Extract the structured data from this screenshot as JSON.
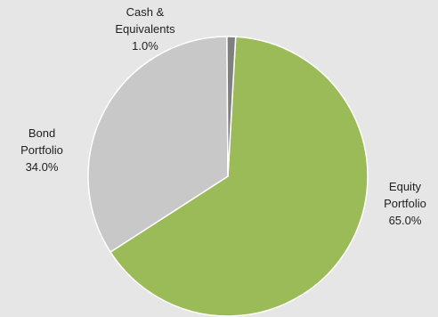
{
  "chart_data": {
    "type": "pie",
    "title": "",
    "slices": [
      {
        "label_lines": [
          "Equity",
          "Portfolio"
        ],
        "value": 65.0,
        "value_label": "65.0%",
        "color": "#9bbb59"
      },
      {
        "label_lines": [
          "Bond",
          "Portfolio"
        ],
        "value": 34.0,
        "value_label": "34.0%",
        "color": "#c8c8c8"
      },
      {
        "label_lines": [
          "Cash &",
          "Equivalents"
        ],
        "value": 1.0,
        "value_label": "1.0%",
        "color": "#808080"
      }
    ],
    "start_angle_deg": 3.2,
    "direction": "clockwise",
    "slice_border_color": "#ffffff",
    "legend": "none"
  }
}
